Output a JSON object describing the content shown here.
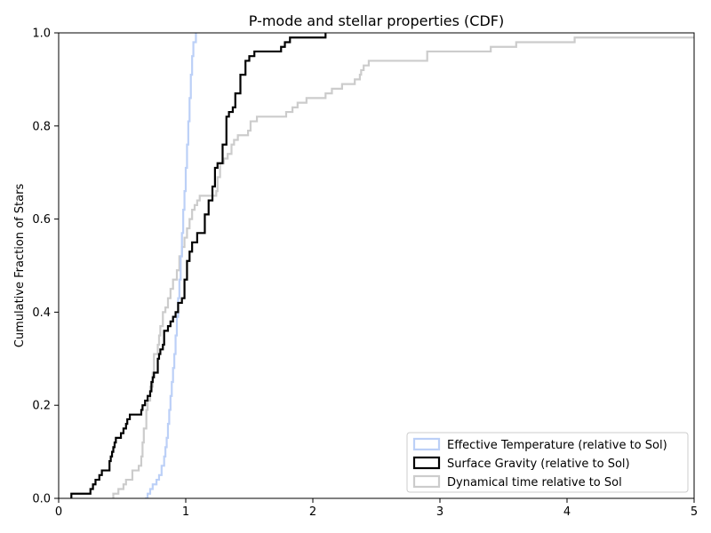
{
  "chart_data": {
    "type": "step",
    "title": "P-mode and stellar properties (CDF)",
    "xlabel": "",
    "ylabel": "Cumulative Fraction of Stars",
    "xlim": [
      0,
      5
    ],
    "ylim": [
      0,
      1
    ],
    "xticks": [
      "0",
      "1",
      "2",
      "3",
      "4",
      "5"
    ],
    "yticks": [
      "0.0",
      "0.2",
      "0.4",
      "0.6",
      "0.8",
      "1.0"
    ],
    "grid": false,
    "legend_position": "lower-right",
    "series": [
      {
        "name": "Effective Temperature (relative to Sol)",
        "color": "#bcd0f7",
        "points": [
          [
            0.68,
            0.0
          ],
          [
            0.7,
            0.01
          ],
          [
            0.72,
            0.02
          ],
          [
            0.74,
            0.03
          ],
          [
            0.77,
            0.04
          ],
          [
            0.79,
            0.05
          ],
          [
            0.81,
            0.07
          ],
          [
            0.83,
            0.09
          ],
          [
            0.84,
            0.11
          ],
          [
            0.85,
            0.13
          ],
          [
            0.86,
            0.16
          ],
          [
            0.87,
            0.19
          ],
          [
            0.88,
            0.22
          ],
          [
            0.89,
            0.25
          ],
          [
            0.9,
            0.28
          ],
          [
            0.91,
            0.31
          ],
          [
            0.92,
            0.35
          ],
          [
            0.93,
            0.39
          ],
          [
            0.94,
            0.43
          ],
          [
            0.95,
            0.47
          ],
          [
            0.96,
            0.52
          ],
          [
            0.97,
            0.57
          ],
          [
            0.98,
            0.62
          ],
          [
            0.99,
            0.66
          ],
          [
            1.0,
            0.71
          ],
          [
            1.01,
            0.76
          ],
          [
            1.02,
            0.81
          ],
          [
            1.03,
            0.86
          ],
          [
            1.04,
            0.91
          ],
          [
            1.05,
            0.95
          ],
          [
            1.06,
            0.98
          ],
          [
            1.08,
            1.0
          ]
        ]
      },
      {
        "name": "Surface Gravity (relative to Sol)",
        "color": "#000000",
        "points": [
          [
            0.1,
            0.0
          ],
          [
            0.1,
            0.01
          ],
          [
            0.25,
            0.02
          ],
          [
            0.27,
            0.03
          ],
          [
            0.29,
            0.04
          ],
          [
            0.32,
            0.05
          ],
          [
            0.34,
            0.06
          ],
          [
            0.4,
            0.08
          ],
          [
            0.41,
            0.09
          ],
          [
            0.42,
            0.1
          ],
          [
            0.43,
            0.11
          ],
          [
            0.44,
            0.12
          ],
          [
            0.45,
            0.13
          ],
          [
            0.49,
            0.14
          ],
          [
            0.51,
            0.15
          ],
          [
            0.53,
            0.16
          ],
          [
            0.54,
            0.17
          ],
          [
            0.56,
            0.18
          ],
          [
            0.65,
            0.19
          ],
          [
            0.66,
            0.2
          ],
          [
            0.68,
            0.21
          ],
          [
            0.7,
            0.22
          ],
          [
            0.72,
            0.23
          ],
          [
            0.73,
            0.25
          ],
          [
            0.74,
            0.26
          ],
          [
            0.75,
            0.27
          ],
          [
            0.78,
            0.3
          ],
          [
            0.79,
            0.31
          ],
          [
            0.8,
            0.32
          ],
          [
            0.82,
            0.33
          ],
          [
            0.83,
            0.36
          ],
          [
            0.86,
            0.37
          ],
          [
            0.88,
            0.38
          ],
          [
            0.9,
            0.39
          ],
          [
            0.92,
            0.4
          ],
          [
            0.94,
            0.42
          ],
          [
            0.97,
            0.43
          ],
          [
            0.99,
            0.47
          ],
          [
            1.01,
            0.51
          ],
          [
            1.03,
            0.53
          ],
          [
            1.05,
            0.55
          ],
          [
            1.09,
            0.57
          ],
          [
            1.15,
            0.61
          ],
          [
            1.18,
            0.64
          ],
          [
            1.21,
            0.67
          ],
          [
            1.23,
            0.71
          ],
          [
            1.25,
            0.72
          ],
          [
            1.29,
            0.76
          ],
          [
            1.32,
            0.82
          ],
          [
            1.34,
            0.83
          ],
          [
            1.37,
            0.84
          ],
          [
            1.39,
            0.87
          ],
          [
            1.43,
            0.91
          ],
          [
            1.47,
            0.94
          ],
          [
            1.5,
            0.95
          ],
          [
            1.54,
            0.96
          ],
          [
            1.75,
            0.97
          ],
          [
            1.78,
            0.98
          ],
          [
            1.82,
            0.99
          ],
          [
            2.1,
            1.0
          ]
        ]
      },
      {
        "name": "Dynamical time relative to Sol",
        "color": "#cccccc",
        "points": [
          [
            0.43,
            0.0
          ],
          [
            0.43,
            0.01
          ],
          [
            0.47,
            0.02
          ],
          [
            0.51,
            0.03
          ],
          [
            0.53,
            0.04
          ],
          [
            0.58,
            0.06
          ],
          [
            0.63,
            0.07
          ],
          [
            0.65,
            0.09
          ],
          [
            0.66,
            0.12
          ],
          [
            0.67,
            0.15
          ],
          [
            0.69,
            0.19
          ],
          [
            0.7,
            0.21
          ],
          [
            0.72,
            0.24
          ],
          [
            0.74,
            0.27
          ],
          [
            0.75,
            0.31
          ],
          [
            0.78,
            0.33
          ],
          [
            0.79,
            0.35
          ],
          [
            0.8,
            0.37
          ],
          [
            0.82,
            0.4
          ],
          [
            0.84,
            0.41
          ],
          [
            0.86,
            0.43
          ],
          [
            0.88,
            0.45
          ],
          [
            0.9,
            0.47
          ],
          [
            0.93,
            0.49
          ],
          [
            0.95,
            0.52
          ],
          [
            0.97,
            0.54
          ],
          [
            0.99,
            0.56
          ],
          [
            1.01,
            0.58
          ],
          [
            1.03,
            0.6
          ],
          [
            1.05,
            0.62
          ],
          [
            1.07,
            0.63
          ],
          [
            1.09,
            0.64
          ],
          [
            1.11,
            0.65
          ],
          [
            1.24,
            0.66
          ],
          [
            1.25,
            0.69
          ],
          [
            1.27,
            0.72
          ],
          [
            1.3,
            0.73
          ],
          [
            1.33,
            0.74
          ],
          [
            1.36,
            0.76
          ],
          [
            1.38,
            0.77
          ],
          [
            1.41,
            0.78
          ],
          [
            1.49,
            0.79
          ],
          [
            1.51,
            0.81
          ],
          [
            1.56,
            0.82
          ],
          [
            1.79,
            0.83
          ],
          [
            1.84,
            0.84
          ],
          [
            1.88,
            0.85
          ],
          [
            1.95,
            0.86
          ],
          [
            2.1,
            0.87
          ],
          [
            2.15,
            0.88
          ],
          [
            2.23,
            0.89
          ],
          [
            2.33,
            0.9
          ],
          [
            2.37,
            0.91
          ],
          [
            2.38,
            0.92
          ],
          [
            2.4,
            0.93
          ],
          [
            2.44,
            0.94
          ],
          [
            2.9,
            0.96
          ],
          [
            3.4,
            0.97
          ],
          [
            3.6,
            0.98
          ],
          [
            4.06,
            0.99
          ],
          [
            5.0,
            0.99
          ]
        ]
      }
    ]
  }
}
